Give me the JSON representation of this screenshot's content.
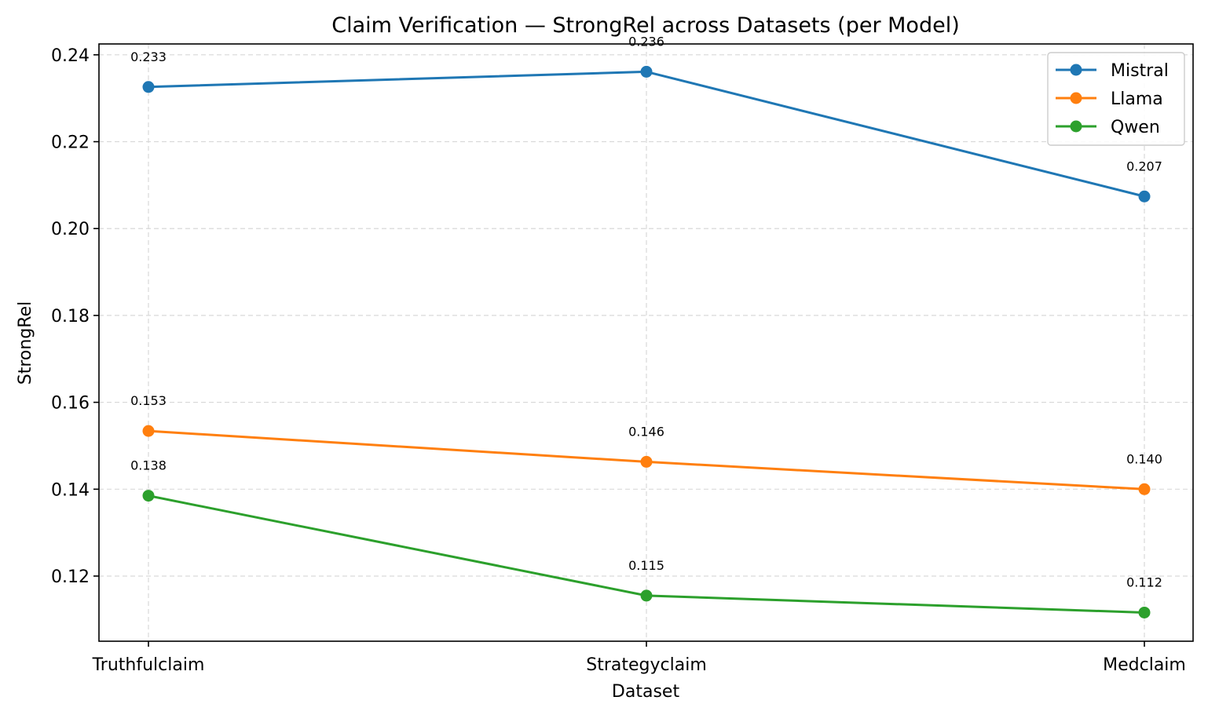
{
  "chart_data": {
    "type": "line",
    "title": "Claim Verification — StrongRel across Datasets (per Model)",
    "xlabel": "Dataset",
    "ylabel": "StrongRel",
    "categories": [
      "Truthfulclaim",
      "Strategyclaim",
      "Medclaim"
    ],
    "ylim": [
      0.105,
      0.2425
    ],
    "yticks": [
      0.12,
      0.14,
      0.16,
      0.18,
      0.2,
      0.22,
      0.24
    ],
    "ytick_labels": [
      "0.12",
      "0.14",
      "0.16",
      "0.18",
      "0.20",
      "0.22",
      "0.24"
    ],
    "grid": true,
    "legend_position": "top-right",
    "series": [
      {
        "name": "Mistral",
        "color": "#1f77b4",
        "values": [
          0.2326,
          0.2361,
          0.2074
        ],
        "labels": [
          "0.233",
          "0.236",
          "0.207"
        ]
      },
      {
        "name": "Llama",
        "color": "#ff7f0e",
        "values": [
          0.1534,
          0.1463,
          0.14
        ],
        "labels": [
          "0.153",
          "0.146",
          "0.140"
        ]
      },
      {
        "name": "Qwen",
        "color": "#2ca02c",
        "values": [
          0.1385,
          0.1155,
          0.1116
        ],
        "labels": [
          "0.138",
          "0.115",
          "0.112"
        ]
      }
    ]
  }
}
